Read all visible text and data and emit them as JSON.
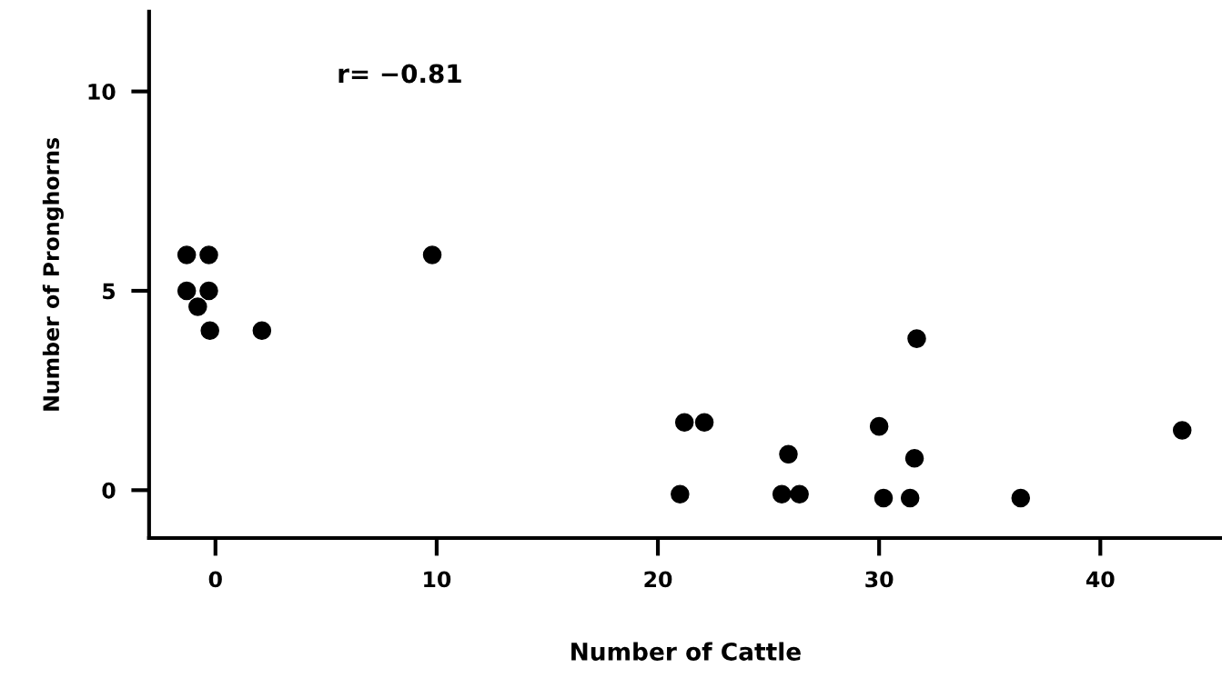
{
  "chart_data": {
    "type": "scatter",
    "xlabel": "Number of Cattle",
    "ylabel": "Number of Pronghorns",
    "annotations": [
      "r= −0.81"
    ],
    "x": [
      -1.3,
      -0.3,
      -1.3,
      -0.3,
      -0.8,
      -0.25,
      2.1,
      9.8,
      21.0,
      21.2,
      22.1,
      25.9,
      25.6,
      26.4,
      30.0,
      30.2,
      31.7,
      31.6,
      31.4,
      36.4,
      43.7
    ],
    "series": [
      {
        "color": "#000000",
        "values": [
          5.9,
          5.9,
          5.0,
          5.0,
          4.6,
          4.0,
          4.0,
          5.9,
          -0.1,
          1.7,
          1.7,
          0.9,
          -0.1,
          -0.1,
          1.6,
          -0.2,
          3.8,
          0.8,
          -0.2,
          -0.2,
          1.5
        ]
      }
    ],
    "xlim": [
      -3,
      45.5
    ],
    "ylim": [
      -1.2,
      12
    ],
    "xticks": [
      0,
      10,
      20,
      30,
      40
    ],
    "yticks": [
      0,
      5,
      10
    ],
    "grid": false,
    "legend": false,
    "marker": "circle"
  }
}
